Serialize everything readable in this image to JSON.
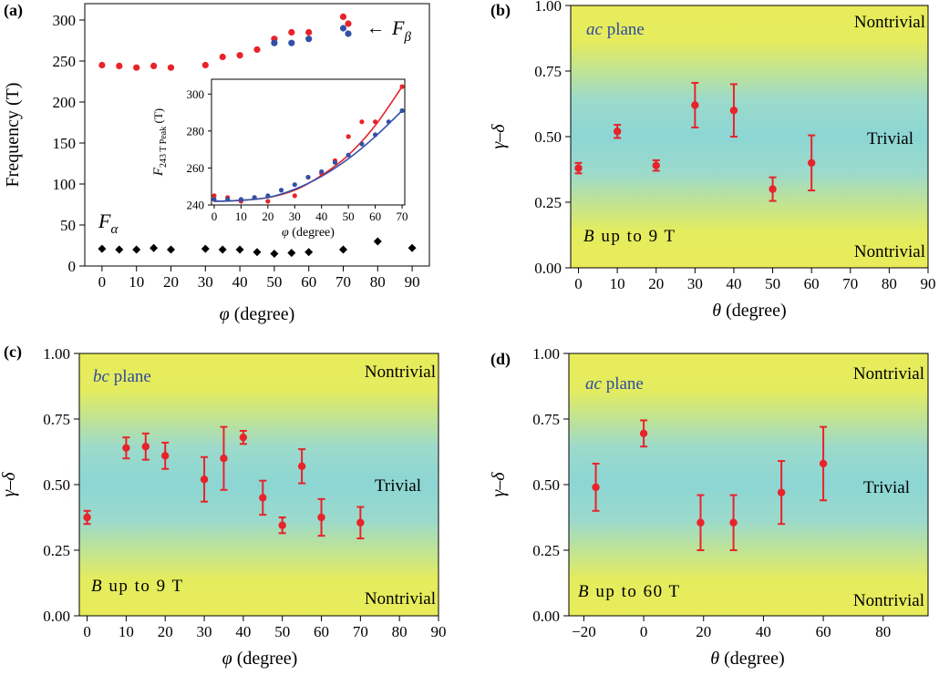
{
  "colors": {
    "red": "#e8232a",
    "blue": "#3350a8",
    "black": "#000000",
    "plane_label": "#2f4aa0",
    "band_yellow": "#e8ec5a",
    "band_cyan": "#8fd8d4"
  },
  "chart_data": [
    {
      "panel": "(a)",
      "type": "scatter",
      "xlabel_sym": "φ",
      "xlabel_unit": "(degree)",
      "ylabel": "Frequency (T)",
      "xlim": [
        -5,
        95
      ],
      "ylim": [
        0,
        320
      ],
      "xticks": [
        0,
        10,
        20,
        30,
        40,
        50,
        60,
        70,
        80,
        90
      ],
      "yticks": [
        0,
        50,
        100,
        150,
        200,
        250,
        300
      ],
      "series": [
        {
          "name": "F_beta red",
          "color": "red",
          "marker": "circle",
          "x": [
            0,
            5,
            10,
            15,
            20,
            30,
            35,
            40,
            45,
            50,
            55,
            60,
            70
          ],
          "y": [
            245,
            244,
            242,
            244,
            242,
            245,
            255,
            257,
            264,
            277,
            285,
            285,
            304
          ]
        },
        {
          "name": "F_beta blue",
          "color": "blue",
          "marker": "circle",
          "x": [
            50,
            55,
            60,
            70
          ],
          "y": [
            272,
            272,
            277,
            290
          ]
        },
        {
          "name": "F_alpha",
          "color": "black",
          "marker": "diamond",
          "x": [
            0,
            5,
            10,
            15,
            20,
            30,
            35,
            40,
            45,
            50,
            55,
            60,
            70,
            80,
            90
          ],
          "y": [
            21,
            20,
            20,
            22,
            20,
            21,
            20,
            20,
            17,
            15,
            16,
            17,
            20,
            30,
            22
          ]
        }
      ],
      "annotations": {
        "f_beta_main": "F",
        "f_beta_sub": "β",
        "f_alpha_main": "F",
        "f_alpha_sub": "α",
        "arrow": "←"
      },
      "inset": {
        "type": "scatter",
        "xlabel_sym": "φ",
        "xlabel_unit": "(degree)",
        "ylabel_main": "F",
        "ylabel_sub": "243 T Peak",
        "ylabel_unit": "(T)",
        "xlim": [
          -1,
          71
        ],
        "ylim": [
          240,
          308
        ],
        "xticks": [
          0,
          10,
          20,
          30,
          40,
          50,
          60,
          70
        ],
        "yticks": [
          240,
          260,
          280,
          300
        ],
        "series": [
          {
            "name": "red points",
            "color": "red",
            "x": [
              0,
              5,
              10,
              15,
              20,
              30,
              35,
              40,
              45,
              50,
              55,
              60,
              70
            ],
            "y": [
              245,
              244,
              242,
              244,
              242,
              245,
              255,
              257,
              264,
              277,
              285,
              285,
              304
            ]
          },
          {
            "name": "blue points",
            "color": "blue",
            "x": [
              0,
              5,
              10,
              15,
              20,
              25,
              30,
              35,
              40,
              45,
              50,
              55,
              60,
              65,
              70
            ],
            "y": [
              243,
              243,
              243,
              244,
              245,
              248,
              251,
              255,
              258,
              263,
              267,
              273,
              278,
              285,
              291
            ]
          }
        ],
        "fits": [
          {
            "color": "red",
            "x": [
              0,
              10,
              20,
              30,
              40,
              50,
              60,
              70
            ],
            "y": [
              242,
              242.5,
              244,
              248,
              256,
              267,
              283,
              304
            ]
          },
          {
            "color": "blue",
            "x": [
              0,
              10,
              20,
              30,
              40,
              50,
              60,
              70
            ],
            "y": [
              242,
              242.5,
              244,
              248.5,
              255.5,
              265,
              277,
              291
            ]
          }
        ]
      }
    },
    {
      "panel": "(b)",
      "type": "scatter",
      "xlabel_sym": "θ",
      "xlabel_unit": "(degree)",
      "ylabel": "γ–δ",
      "xlim": [
        -2,
        90
      ],
      "ylim": [
        0,
        1
      ],
      "xticks": [
        0,
        10,
        20,
        30,
        40,
        50,
        60,
        70,
        80,
        90
      ],
      "yticks": [
        "0.00",
        "0.25",
        "0.50",
        "0.75",
        "1.00"
      ],
      "plane_italic": "ac",
      "plane_rest": " plane",
      "field_sym": "B",
      "field_text": " up to 9 T",
      "top_label": "Nontrivial",
      "mid_label": "Trivial",
      "bottom_label": "Nontrivial",
      "x": [
        0,
        10,
        20,
        30,
        40,
        50,
        60
      ],
      "y": [
        0.38,
        0.52,
        0.39,
        0.62,
        0.6,
        0.3,
        0.4
      ],
      "err": [
        0.02,
        0.025,
        0.02,
        0.085,
        0.1,
        0.045,
        0.105
      ]
    },
    {
      "panel": "(c)",
      "type": "scatter",
      "xlabel_sym": "φ",
      "xlabel_unit": "(degree)",
      "ylabel": "γ–δ",
      "xlim": [
        -2,
        90
      ],
      "ylim": [
        0,
        1
      ],
      "xticks": [
        0,
        10,
        20,
        30,
        40,
        50,
        60,
        70,
        80,
        90
      ],
      "yticks": [
        "0.00",
        "0.25",
        "0.50",
        "0.75",
        "1.00"
      ],
      "plane_italic": "bc",
      "plane_rest": " plane",
      "field_sym": "B",
      "field_text": " up to 9 T",
      "top_label": "Nontrivial",
      "mid_label": "Trivial",
      "bottom_label": "Nontrivial",
      "x": [
        0,
        10,
        15,
        20,
        30,
        35,
        40,
        45,
        50,
        55,
        60,
        70
      ],
      "y": [
        0.375,
        0.64,
        0.645,
        0.61,
        0.52,
        0.6,
        0.68,
        0.45,
        0.345,
        0.57,
        0.375,
        0.355
      ],
      "err": [
        0.025,
        0.04,
        0.05,
        0.05,
        0.085,
        0.12,
        0.025,
        0.065,
        0.03,
        0.065,
        0.07,
        0.06
      ]
    },
    {
      "panel": "(d)",
      "type": "scatter",
      "xlabel_sym": "θ",
      "xlabel_unit": "(degree)",
      "ylabel": "γ–δ",
      "xlim": [
        -25,
        95
      ],
      "ylim": [
        0,
        1
      ],
      "xticks": [
        -20,
        0,
        20,
        40,
        60,
        80
      ],
      "xtick_labels": [
        "−20",
        "0",
        "20",
        "40",
        "60",
        "80"
      ],
      "yticks": [
        "0.00",
        "0.25",
        "0.50",
        "0.75",
        "1.00"
      ],
      "plane_italic": "ac",
      "plane_rest": " plane",
      "field_sym": "B",
      "field_text": " up to 60 T",
      "top_label": "Nontrivial",
      "mid_label": "Trivial",
      "bottom_label": "Nontrivial",
      "x": [
        -16,
        0,
        19,
        30,
        46,
        60
      ],
      "y": [
        0.49,
        0.695,
        0.355,
        0.355,
        0.47,
        0.58
      ],
      "err": [
        0.09,
        0.05,
        0.105,
        0.105,
        0.12,
        0.14
      ]
    }
  ]
}
